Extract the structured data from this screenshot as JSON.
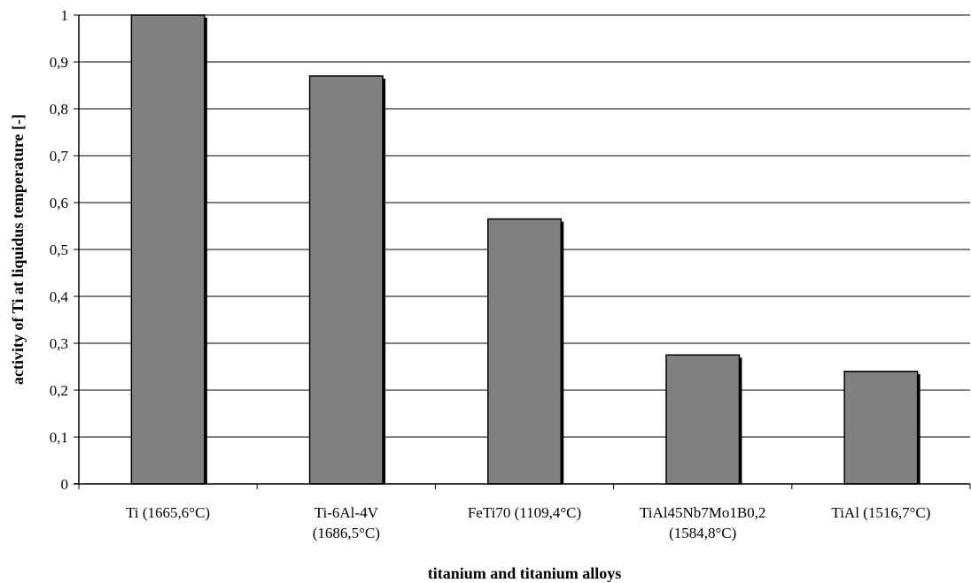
{
  "chart_data": {
    "type": "bar",
    "title": "",
    "xlabel": "titanium and titanium alloys",
    "ylabel": "activity of Ti at liquidus temperature [-]",
    "categories": [
      [
        "Ti (1665,6°C)"
      ],
      [
        "Ti-6Al-4V",
        "(1686,5°C)"
      ],
      [
        "FeTi70 (1109,4°C)"
      ],
      [
        "TiAl45Nb7Mo1B0,2",
        "(1584,8°C)"
      ],
      [
        "TiAl (1516,7°C)"
      ]
    ],
    "values": [
      1.0,
      0.87,
      0.565,
      0.275,
      0.24
    ],
    "ylim": [
      0,
      1
    ],
    "yticks": [
      "0",
      "0,1",
      "0,2",
      "0,3",
      "0,4",
      "0,5",
      "0,6",
      "0,7",
      "0,8",
      "0,9",
      "1"
    ],
    "grid": true,
    "bar_color": "#808080",
    "bar_edge_color": "#000000",
    "grid_color": "#000000"
  }
}
